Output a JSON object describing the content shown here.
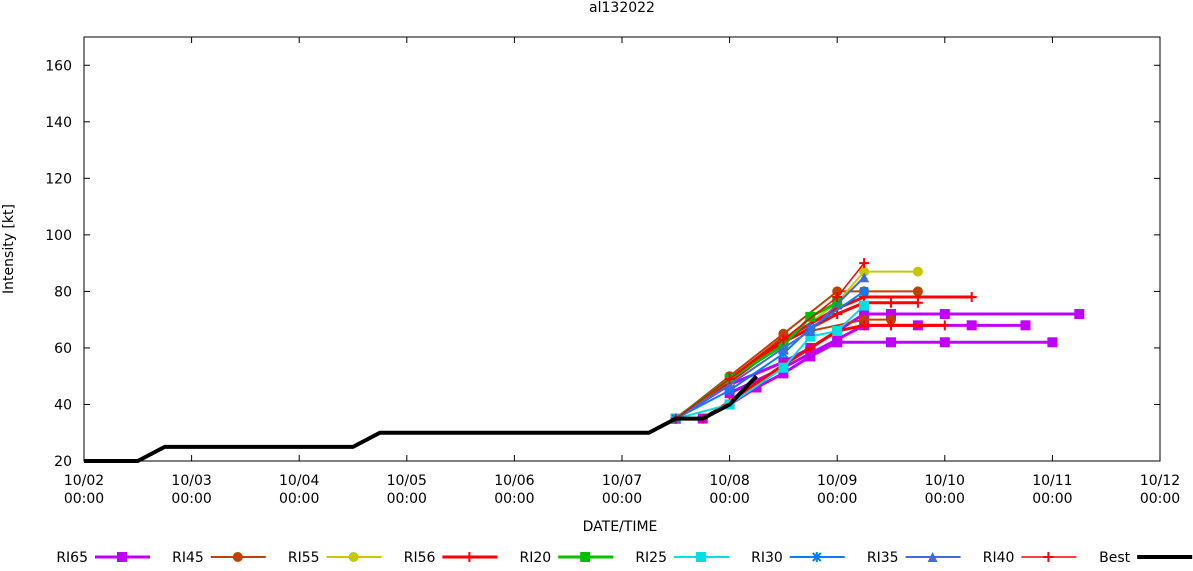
{
  "chart_data": {
    "type": "line",
    "title": "al132022",
    "xlabel": "DATE/TIME",
    "ylabel": "Intensity [kt]",
    "x_unit": "hours since 10/02 00:00",
    "xlim": [
      0,
      240
    ],
    "ylim": [
      20,
      170
    ],
    "yticks": [
      20,
      40,
      60,
      80,
      100,
      120,
      140,
      160
    ],
    "xticks": [
      {
        "h": 0,
        "date": "10/02",
        "time": "00:00"
      },
      {
        "h": 24,
        "date": "10/03",
        "time": "00:00"
      },
      {
        "h": 48,
        "date": "10/04",
        "time": "00:00"
      },
      {
        "h": 72,
        "date": "10/05",
        "time": "00:00"
      },
      {
        "h": 96,
        "date": "10/06",
        "time": "00:00"
      },
      {
        "h": 120,
        "date": "10/07",
        "time": "00:00"
      },
      {
        "h": 144,
        "date": "10/08",
        "time": "00:00"
      },
      {
        "h": 168,
        "date": "10/09",
        "time": "00:00"
      },
      {
        "h": 192,
        "date": "10/10",
        "time": "00:00"
      },
      {
        "h": 216,
        "date": "10/11",
        "time": "00:00"
      },
      {
        "h": 240,
        "date": "10/12",
        "time": "00:00"
      }
    ],
    "legend_position": "bottom",
    "series": [
      {
        "name": "RI65",
        "color": "#c000ff",
        "marker": "square",
        "width": 3,
        "runs": [
          [
            [
              132,
              35
            ],
            [
              138,
              35
            ],
            [
              144,
              40
            ],
            [
              150,
              46
            ],
            [
              156,
              51
            ],
            [
              162,
              57
            ],
            [
              168,
              62
            ],
            [
              180,
              62
            ],
            [
              192,
              62
            ],
            [
              216,
              62
            ]
          ],
          [
            [
              132,
              35
            ],
            [
              144,
              47
            ],
            [
              156,
              55
            ],
            [
              162,
              60
            ],
            [
              168,
              66
            ],
            [
              174,
              72
            ],
            [
              180,
              72
            ],
            [
              192,
              72
            ],
            [
              222,
              72
            ]
          ],
          [
            [
              144,
              44
            ],
            [
              156,
              53
            ],
            [
              168,
              63
            ],
            [
              174,
              68
            ],
            [
              186,
              68
            ],
            [
              198,
              68
            ],
            [
              210,
              68
            ]
          ]
        ]
      },
      {
        "name": "RI45",
        "color": "#c04000",
        "marker": "circle",
        "width": 2,
        "runs": [
          [
            [
              132,
              35
            ],
            [
              144,
              50
            ],
            [
              156,
              65
            ],
            [
              168,
              80
            ],
            [
              174,
              80
            ],
            [
              186,
              80
            ]
          ],
          [
            [
              132,
              35
            ],
            [
              144,
              49
            ],
            [
              156,
              64
            ],
            [
              174,
              70
            ],
            [
              180,
              70
            ]
          ]
        ]
      },
      {
        "name": "RI55",
        "color": "#c8c800",
        "marker": "circle",
        "width": 2,
        "runs": [
          [
            [
              132,
              35
            ],
            [
              144,
              48
            ],
            [
              156,
              62
            ],
            [
              168,
              76
            ],
            [
              174,
              87
            ],
            [
              186,
              87
            ]
          ]
        ]
      },
      {
        "name": "RI56",
        "color": "#ff0000",
        "marker": "plus",
        "width": 3,
        "runs": [
          [
            [
              132,
              35
            ],
            [
              144,
              49
            ],
            [
              156,
              63
            ],
            [
              168,
              74
            ],
            [
              174,
              78
            ],
            [
              198,
              78
            ]
          ],
          [
            [
              132,
              35
            ],
            [
              144,
              48
            ],
            [
              156,
              62
            ],
            [
              168,
              72
            ],
            [
              174,
              76
            ],
            [
              180,
              76
            ],
            [
              186,
              76
            ]
          ],
          [
            [
              132,
              35
            ],
            [
              138,
              35
            ],
            [
              144,
              41
            ],
            [
              156,
              54
            ],
            [
              162,
              60
            ],
            [
              168,
              66
            ],
            [
              174,
              68
            ],
            [
              180,
              68
            ],
            [
              192,
              68
            ]
          ]
        ]
      },
      {
        "name": "RI20",
        "color": "#00c000",
        "marker": "xbox",
        "width": 3,
        "runs": [
          [
            [
              132,
              35
            ],
            [
              144,
              49
            ],
            [
              156,
              61
            ],
            [
              162,
              71
            ],
            [
              168,
              76
            ]
          ]
        ]
      },
      {
        "name": "RI25",
        "color": "#00e0e0",
        "marker": "square",
        "width": 2,
        "runs": [
          [
            [
              132,
              35
            ],
            [
              144,
              40
            ],
            [
              156,
              53
            ],
            [
              162,
              64
            ],
            [
              168,
              66
            ],
            [
              174,
              75
            ]
          ]
        ]
      },
      {
        "name": "RI30",
        "color": "#0080ff",
        "marker": "star",
        "width": 2,
        "runs": [
          [
            [
              132,
              35
            ],
            [
              144,
              45
            ],
            [
              156,
              58
            ],
            [
              162,
              67
            ],
            [
              174,
              80
            ]
          ]
        ]
      },
      {
        "name": "RI35",
        "color": "#4169e1",
        "marker": "triangle",
        "width": 2,
        "runs": [
          [
            [
              132,
              35
            ],
            [
              144,
              47
            ],
            [
              156,
              60
            ],
            [
              162,
              66
            ],
            [
              174,
              85
            ]
          ]
        ]
      },
      {
        "name": "RI40",
        "color": "#ff0000",
        "marker": "plus",
        "width": 1.5,
        "runs": [
          [
            [
              132,
              35
            ],
            [
              144,
              49
            ],
            [
              156,
              63
            ],
            [
              168,
              78
            ],
            [
              174,
              90
            ]
          ]
        ]
      },
      {
        "name": "Best",
        "color": "#000000",
        "marker": "none",
        "width": 4,
        "runs": [
          [
            [
              0,
              20
            ],
            [
              12,
              20
            ],
            [
              18,
              25
            ],
            [
              30,
              25
            ],
            [
              48,
              25
            ],
            [
              60,
              25
            ],
            [
              66,
              30
            ],
            [
              96,
              30
            ],
            [
              126,
              30
            ],
            [
              132,
              35
            ],
            [
              138,
              35
            ],
            [
              144,
              40
            ],
            [
              150,
              50
            ]
          ]
        ]
      }
    ]
  }
}
